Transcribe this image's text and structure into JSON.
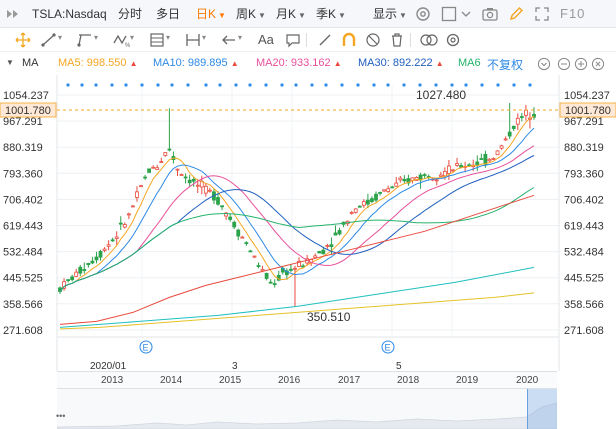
{
  "topbar": {
    "symbol": "TSLA:Nasdaq",
    "periods": [
      {
        "label": "分时",
        "active": false
      },
      {
        "label": "多日",
        "active": false
      },
      {
        "label": "日K",
        "active": true
      },
      {
        "label": "周K",
        "active": false
      },
      {
        "label": "月K",
        "active": false
      },
      {
        "label": "季K",
        "active": false
      }
    ],
    "display_label": "显示",
    "f10_label": "F10"
  },
  "ma_bar": {
    "prefix": "MA",
    "ma5": "MA5: 998.550",
    "ma10": "MA10: 989.895",
    "ma20": "MA20: 933.162",
    "ma30": "MA30: 892.222",
    "ma60": "MA6",
    "adjust": "不复权",
    "colors": {
      "ma5": "#f5a623",
      "ma10": "#2e8ae6",
      "ma20": "#e8509a",
      "ma30": "#1f5fbf",
      "ma60": "#25b36b"
    }
  },
  "chart": {
    "y_ticks": [
      "1054.237",
      "967.291",
      "880.319",
      "793.360",
      "706.402",
      "619.443",
      "532.484",
      "445.525",
      "358.566",
      "271.608"
    ],
    "current_price": "1001.780",
    "high_label": "1027.480",
    "low_label": "350.510",
    "x_labels": [
      "2020/01",
      "3",
      "5"
    ],
    "up_color": "#e84a3c",
    "down_color": "#2ca34a"
  },
  "navigator": {
    "years": [
      "2013",
      "2014",
      "2015",
      "2016",
      "2017",
      "2018",
      "2019",
      "2020"
    ],
    "handle": "•••"
  }
}
